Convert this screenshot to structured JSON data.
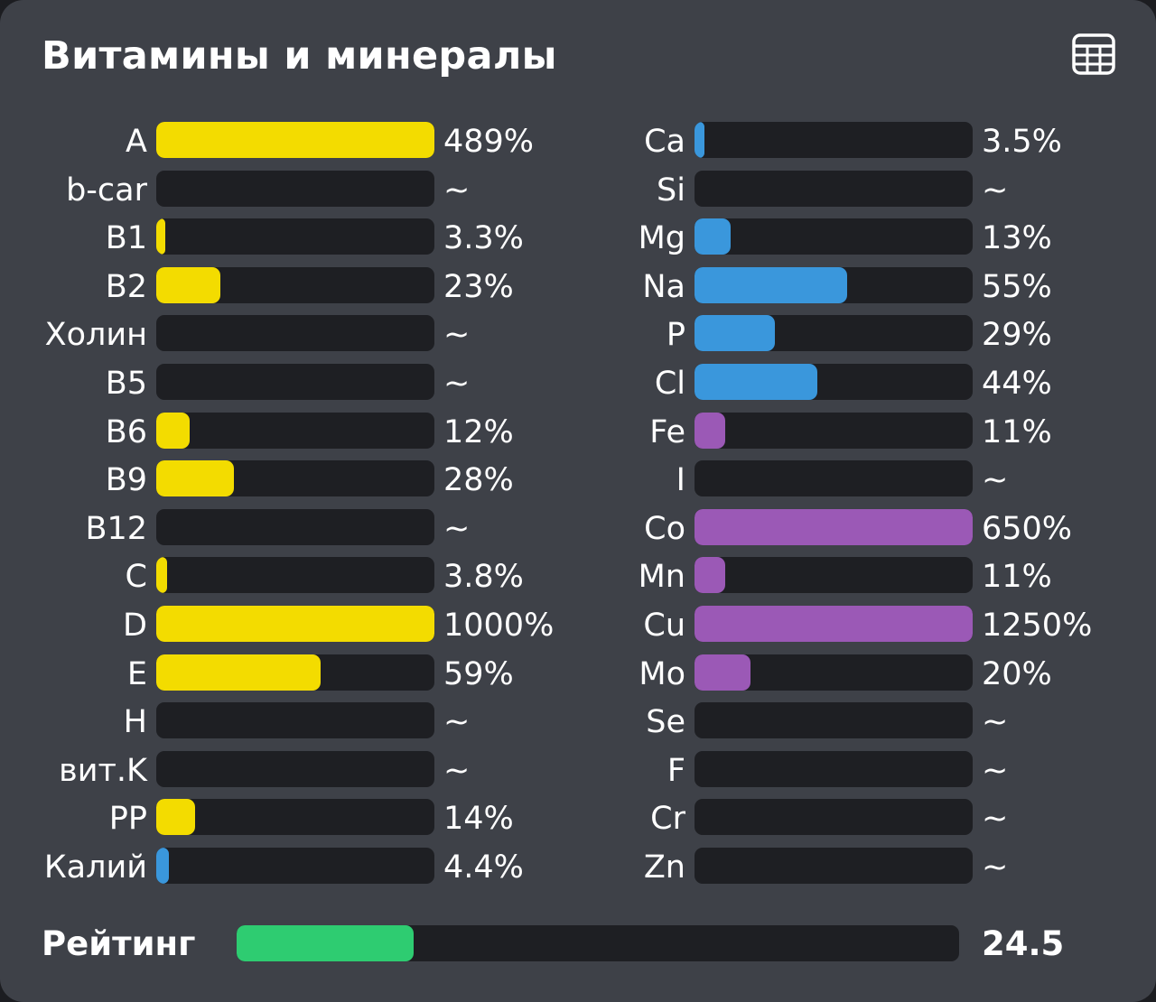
{
  "title": "Витамины и минералы",
  "colors": {
    "vitamin": "#f3dc00",
    "blue": "#3a97dc",
    "purple": "#9b59b6",
    "rating": "#2ecc71"
  },
  "icons": {
    "table_view": "table-icon"
  },
  "vitamins": [
    {
      "label": "A",
      "value": "489%",
      "fill": 1.0,
      "color": "vitamin"
    },
    {
      "label": "b-car",
      "value": "~",
      "fill": 0,
      "color": "vitamin"
    },
    {
      "label": "B1",
      "value": "3.3%",
      "fill": 0.033,
      "color": "vitamin"
    },
    {
      "label": "B2",
      "value": "23%",
      "fill": 0.23,
      "color": "vitamin"
    },
    {
      "label": "Холин",
      "value": "~",
      "fill": 0,
      "color": "vitamin"
    },
    {
      "label": "B5",
      "value": "~",
      "fill": 0,
      "color": "vitamin"
    },
    {
      "label": "B6",
      "value": "12%",
      "fill": 0.12,
      "color": "vitamin"
    },
    {
      "label": "B9",
      "value": "28%",
      "fill": 0.28,
      "color": "vitamin"
    },
    {
      "label": "B12",
      "value": "~",
      "fill": 0,
      "color": "vitamin"
    },
    {
      "label": "C",
      "value": "3.8%",
      "fill": 0.038,
      "color": "vitamin"
    },
    {
      "label": "D",
      "value": "1000%",
      "fill": 1.0,
      "color": "vitamin"
    },
    {
      "label": "E",
      "value": "59%",
      "fill": 0.59,
      "color": "vitamin"
    },
    {
      "label": "H",
      "value": "~",
      "fill": 0,
      "color": "vitamin"
    },
    {
      "label": "вит.K",
      "value": "~",
      "fill": 0,
      "color": "vitamin"
    },
    {
      "label": "PP",
      "value": "14%",
      "fill": 0.14,
      "color": "vitamin"
    },
    {
      "label": "Калий",
      "value": "4.4%",
      "fill": 0.044,
      "color": "blue"
    }
  ],
  "minerals": [
    {
      "label": "Ca",
      "value": "3.5%",
      "fill": 0.035,
      "color": "blue"
    },
    {
      "label": "Si",
      "value": "~",
      "fill": 0,
      "color": "blue"
    },
    {
      "label": "Mg",
      "value": "13%",
      "fill": 0.13,
      "color": "blue"
    },
    {
      "label": "Na",
      "value": "55%",
      "fill": 0.55,
      "color": "blue"
    },
    {
      "label": "P",
      "value": "29%",
      "fill": 0.29,
      "color": "blue"
    },
    {
      "label": "Cl",
      "value": "44%",
      "fill": 0.44,
      "color": "blue"
    },
    {
      "label": "Fe",
      "value": "11%",
      "fill": 0.11,
      "color": "purple"
    },
    {
      "label": "I",
      "value": "~",
      "fill": 0,
      "color": "purple"
    },
    {
      "label": "Co",
      "value": "650%",
      "fill": 1.0,
      "color": "purple"
    },
    {
      "label": "Mn",
      "value": "11%",
      "fill": 0.11,
      "color": "purple"
    },
    {
      "label": "Cu",
      "value": "1250%",
      "fill": 1.0,
      "color": "purple"
    },
    {
      "label": "Mo",
      "value": "20%",
      "fill": 0.2,
      "color": "purple"
    },
    {
      "label": "Se",
      "value": "~",
      "fill": 0,
      "color": "purple"
    },
    {
      "label": "F",
      "value": "~",
      "fill": 0,
      "color": "purple"
    },
    {
      "label": "Cr",
      "value": "~",
      "fill": 0,
      "color": "purple"
    },
    {
      "label": "Zn",
      "value": "~",
      "fill": 0,
      "color": "purple"
    }
  ],
  "rating": {
    "label": "Рейтинг",
    "value": "24.5",
    "fill": 0.245
  }
}
